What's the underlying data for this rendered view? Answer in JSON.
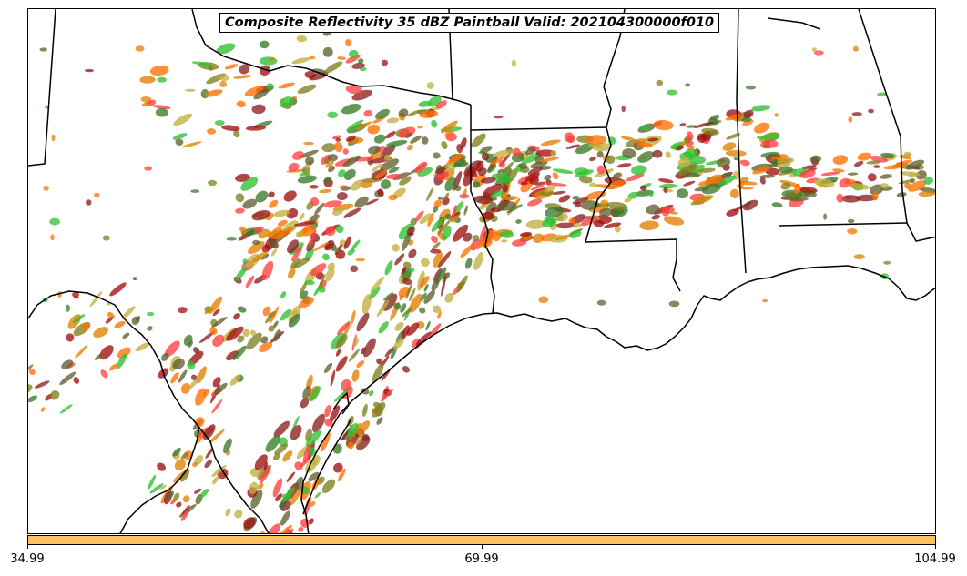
{
  "title": "Composite Reflectivity 35 dBZ Paintball Valid: 202104300000f010",
  "colorbar": {
    "color": "#ffc060",
    "ticks": [
      "34.99",
      "69.99",
      "104.99"
    ],
    "range": [
      34.99,
      104.99
    ]
  },
  "colors": {
    "paintball_members": [
      "#ff4040",
      "#e08000",
      "#30c030",
      "#808020",
      "#8b2020",
      "#3a7a2a",
      "#c0b040",
      "#ff7000",
      "#a01010",
      "#606030"
    ],
    "boundaries": "#000000"
  },
  "map": {
    "features": [
      "state-borders",
      "coastline",
      "country-border"
    ],
    "region": "South Central US (Texas, Louisiana, Mississippi, Alabama, Gulf of Mexico)"
  }
}
